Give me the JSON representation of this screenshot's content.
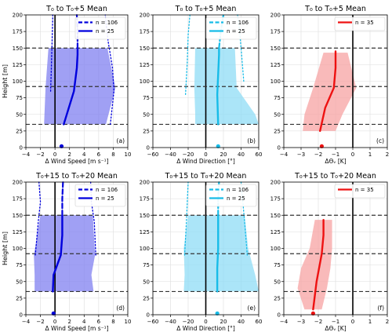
{
  "ylabel": "Height [m]",
  "colors": {
    "speed": "#0000dd",
    "speed_fill": "#8080f0",
    "direction": "#17bce8",
    "direction_fill": "#8fdcf5",
    "theta": "#ee1111",
    "theta_fill": "#f7a3a3",
    "zero_line": "#000000",
    "hline": "#333333"
  },
  "chart_data": [
    {
      "type": "line",
      "panel": "(a)",
      "title": "T₀ to T₀+5 Mean",
      "xlabel": "Δ Wind Speed [m s⁻¹]",
      "color": "speed",
      "xlim": [
        -4,
        10
      ],
      "xticks": [
        -4,
        -2,
        0,
        2,
        4,
        6,
        8,
        10
      ],
      "ylim": [
        0,
        200
      ],
      "yticks": [
        0,
        25,
        50,
        75,
        100,
        125,
        150,
        175,
        200
      ],
      "hlines": [
        35,
        92,
        150
      ],
      "legend": "top-right",
      "series": [
        {
          "name": "n = 106",
          "style": "dashed",
          "x": [
            3.1,
            3.1,
            3.0
          ],
          "y": [
            150,
            175,
            200
          ]
        },
        {
          "name": "n = 25",
          "style": "solid",
          "x": [
            1.2,
            2.6,
            3.0,
            3.1,
            3.1
          ],
          "y": [
            35,
            85,
            120,
            140,
            150
          ]
        },
        {
          "style": "dotted",
          "x": [
            -0.6,
            -0.5,
            -0.4,
            -0.3
          ],
          "y": [
            85,
            120,
            160,
            200
          ]
        },
        {
          "style": "dotted",
          "x": [
            7.6,
            8.1,
            7.9,
            7.3,
            6.9
          ],
          "y": [
            35,
            85,
            120,
            160,
            200
          ]
        }
      ],
      "band": {
        "y": [
          35,
          90,
          150
        ],
        "low": [
          -1.5,
          -1.3,
          -0.9
        ],
        "high": [
          7.0,
          8.3,
          7.2
        ]
      },
      "marker": {
        "x": 0.9,
        "y": 2
      }
    },
    {
      "type": "line",
      "panel": "(b)",
      "title": "T₀ to T₀+5 Mean",
      "xlabel": "Δ Wind Direction [°]",
      "color": "direction",
      "xlim": [
        -60,
        60
      ],
      "xticks": [
        -60,
        -40,
        -20,
        0,
        20,
        40,
        60
      ],
      "ylim": [
        0,
        200
      ],
      "yticks": [
        0,
        25,
        50,
        75,
        100,
        125,
        150,
        175,
        200
      ],
      "hlines": [
        35,
        92,
        150
      ],
      "legend": "top-right",
      "series": [
        {
          "name": "n = 106",
          "style": "dashed",
          "x": [
            15,
            17,
            20
          ],
          "y": [
            150,
            175,
            200
          ]
        },
        {
          "name": "n = 25",
          "style": "solid",
          "x": [
            14,
            13,
            14,
            15,
            15
          ],
          "y": [
            35,
            80,
            110,
            140,
            150
          ]
        },
        {
          "style": "dotted",
          "x": [
            -23,
            -21,
            -20,
            -18
          ],
          "y": [
            80,
            130,
            170,
            200
          ]
        },
        {
          "style": "dotted",
          "x": [
            43,
            40,
            38,
            36
          ],
          "y": [
            100,
            150,
            180,
            200
          ]
        }
      ],
      "band": {
        "y": [
          35,
          50,
          90,
          150
        ],
        "low": [
          -12,
          -12,
          -13,
          -12
        ],
        "high": [
          60,
          56,
          35,
          33
        ]
      },
      "marker": {
        "x": 14,
        "y": 2
      }
    },
    {
      "type": "line",
      "panel": "(c)",
      "title": "T₀ to T₀+5 Mean",
      "xlabel": "ΔΘᵥ [K]",
      "color": "theta",
      "xlim": [
        -4,
        2
      ],
      "xticks": [
        -4,
        -3,
        -2,
        -1,
        0,
        1,
        2
      ],
      "ylim": [
        0,
        200
      ],
      "yticks": [
        0,
        25,
        50,
        75,
        100,
        125,
        150,
        175,
        200
      ],
      "hlines": [
        35,
        92,
        150
      ],
      "legend": "top-right",
      "series": [
        {
          "name": "n = 35",
          "style": "solid",
          "x": [
            -1.9,
            -1.6,
            -1.1,
            -1.0,
            -1.0
          ],
          "y": [
            25,
            60,
            90,
            120,
            145
          ]
        }
      ],
      "band": {
        "y": [
          25,
          50,
          90,
          143
        ],
        "low": [
          -2.9,
          -2.8,
          -2.3,
          -1.7
        ],
        "high": [
          -1.0,
          -0.6,
          0.2,
          -0.3
        ]
      },
      "marker": {
        "x": -1.8,
        "y": 2
      }
    },
    {
      "type": "line",
      "panel": "(d)",
      "title": "T₀+15 to T₀+20 Mean",
      "xlabel": "Δ Wind Speed [m s⁻¹]",
      "color": "speed",
      "xlim": [
        -4,
        10
      ],
      "xticks": [
        -4,
        -2,
        0,
        2,
        4,
        6,
        8,
        10
      ],
      "ylim": [
        0,
        200
      ],
      "yticks": [
        0,
        25,
        50,
        75,
        100,
        125,
        150,
        175,
        200
      ],
      "hlines": [
        35,
        92,
        150
      ],
      "legend": "top-right",
      "series": [
        {
          "name": "n = 106",
          "style": "dashed",
          "x": [
            1.0,
            1.0,
            1.1
          ],
          "y": [
            150,
            175,
            200
          ]
        },
        {
          "name": "n = 25",
          "style": "solid",
          "x": [
            -0.3,
            -0.2,
            0.8,
            1.0,
            1.0
          ],
          "y": [
            35,
            60,
            90,
            120,
            150
          ]
        },
        {
          "style": "dotted",
          "x": [
            -2.7,
            -2.3,
            -2.0,
            -2.2
          ],
          "y": [
            90,
            140,
            170,
            200
          ]
        },
        {
          "style": "dotted",
          "x": [
            5.6,
            5.4,
            5.0,
            4.9
          ],
          "y": [
            90,
            140,
            170,
            200
          ]
        }
      ],
      "band": {
        "y": [
          35,
          60,
          90,
          150
        ],
        "low": [
          -2.8,
          -2.8,
          -2.9,
          -2.0
        ],
        "high": [
          5.3,
          5.0,
          5.5,
          5.2
        ]
      },
      "marker": {
        "x": -0.2,
        "y": 2
      }
    },
    {
      "type": "line",
      "panel": "(e)",
      "title": "T₀+15 to T₀+20 Mean",
      "xlabel": "Δ Wind Direction [°]",
      "color": "direction",
      "xlim": [
        -60,
        60
      ],
      "xticks": [
        -60,
        -40,
        -20,
        0,
        20,
        40,
        60
      ],
      "ylim": [
        0,
        200
      ],
      "yticks": [
        0,
        25,
        50,
        75,
        100,
        125,
        150,
        175,
        200
      ],
      "hlines": [
        35,
        92,
        150
      ],
      "legend": "top-right",
      "series": [
        {
          "name": "n = 106",
          "style": "dashed",
          "x": [
            14,
            14,
            15
          ],
          "y": [
            150,
            175,
            200
          ]
        },
        {
          "name": "n = 25",
          "style": "solid",
          "x": [
            13,
            13,
            14,
            14,
            14
          ],
          "y": [
            35,
            70,
            100,
            130,
            150
          ]
        },
        {
          "style": "dotted",
          "x": [
            -24,
            -22,
            -21,
            -20
          ],
          "y": [
            90,
            140,
            170,
            200
          ]
        },
        {
          "style": "dotted",
          "x": [
            47,
            44,
            42,
            40
          ],
          "y": [
            90,
            140,
            170,
            200
          ]
        }
      ],
      "band": {
        "y": [
          35,
          60,
          100,
          150
        ],
        "low": [
          -25,
          -24,
          -25,
          -20
        ],
        "high": [
          60,
          56,
          48,
          44
        ]
      },
      "marker": {
        "x": 13,
        "y": 2
      }
    },
    {
      "type": "line",
      "panel": "(f)",
      "title": "T₀+15 to T₀+20 Mean",
      "xlabel": "ΔΘᵥ [K]",
      "color": "theta",
      "xlim": [
        -4,
        2
      ],
      "xticks": [
        -4,
        -3,
        -2,
        -1,
        0,
        1,
        2
      ],
      "ylim": [
        0,
        200
      ],
      "yticks": [
        0,
        25,
        50,
        75,
        100,
        125,
        150,
        175,
        200
      ],
      "hlines": [
        35,
        92,
        150
      ],
      "legend": "top-right",
      "series": [
        {
          "name": "n = 35",
          "style": "solid",
          "x": [
            -2.3,
            -2.1,
            -1.8,
            -1.7,
            -1.7
          ],
          "y": [
            8,
            50,
            92,
            120,
            143
          ]
        }
      ],
      "band": {
        "y": [
          8,
          40,
          70,
          100,
          143
        ],
        "low": [
          -2.8,
          -3.2,
          -3.0,
          -2.5,
          -2.2
        ],
        "high": [
          -1.8,
          -1.5,
          -1.3,
          -1.2,
          -1.2
        ]
      },
      "marker": {
        "x": -2.3,
        "y": 2
      }
    }
  ]
}
